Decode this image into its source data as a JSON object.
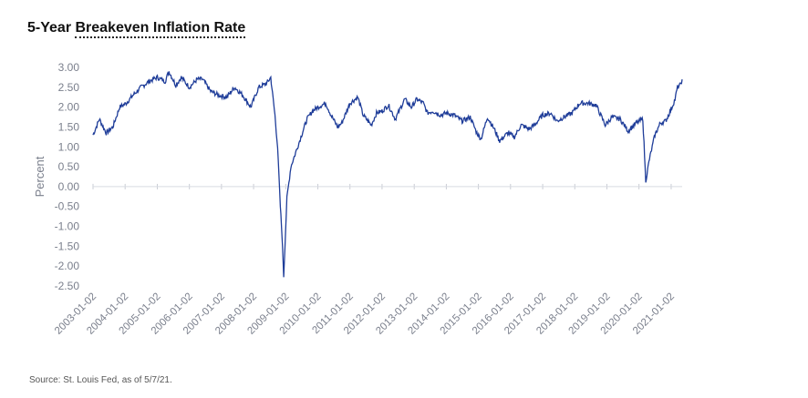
{
  "title": {
    "prefix": "5-Year ",
    "underlined": "Breakeven Inflation Rate"
  },
  "source": "Source: St. Louis Fed, as of 5/7/21.",
  "chart_data": {
    "type": "line",
    "title": "5-Year Breakeven Inflation Rate",
    "xlabel": "",
    "ylabel": "Percent",
    "ylim": [
      -2.5,
      3.0
    ],
    "xlim": [
      "2003-01-02",
      "2021-05-07"
    ],
    "yticks": [
      "3.00",
      "2.50",
      "2.00",
      "1.50",
      "1.00",
      "0.50",
      "0.00",
      "-0.50",
      "-1.00",
      "-1.50",
      "-2.00",
      "-2.50"
    ],
    "xticks": [
      "2003-01-02",
      "2004-01-02",
      "2005-01-02",
      "2006-01-02",
      "2007-01-02",
      "2008-01-02",
      "2009-01-02",
      "2010-01-02",
      "2011-01-02",
      "2012-01-02",
      "2013-01-02",
      "2014-01-02",
      "2015-01-02",
      "2016-01-02",
      "2017-01-02",
      "2018-01-02",
      "2019-01-02",
      "2020-01-02",
      "2021-01-02"
    ],
    "zero_line": true,
    "grid": false,
    "line_color": "#1f3d99",
    "x": [
      "2003-01-02",
      "2003-03-15",
      "2003-06-01",
      "2003-08-15",
      "2003-11-01",
      "2004-01-15",
      "2004-04-01",
      "2004-07-01",
      "2004-10-01",
      "2005-01-02",
      "2005-04-01",
      "2005-05-15",
      "2005-08-01",
      "2005-10-01",
      "2006-01-02",
      "2006-04-01",
      "2006-06-01",
      "2006-09-01",
      "2006-12-01",
      "2007-03-01",
      "2007-06-01",
      "2007-09-01",
      "2007-12-01",
      "2008-03-01",
      "2008-06-01",
      "2008-07-15",
      "2008-09-01",
      "2008-10-01",
      "2008-11-01",
      "2008-11-20",
      "2008-12-10",
      "2009-01-15",
      "2009-03-01",
      "2009-05-01",
      "2009-07-01",
      "2009-09-01",
      "2009-11-01",
      "2010-01-02",
      "2010-04-01",
      "2010-06-01",
      "2010-08-15",
      "2010-10-01",
      "2011-01-02",
      "2011-04-01",
      "2011-06-01",
      "2011-09-01",
      "2011-11-01",
      "2012-01-02",
      "2012-03-15",
      "2012-06-01",
      "2012-09-15",
      "2012-12-01",
      "2013-02-01",
      "2013-04-15",
      "2013-06-01",
      "2013-08-01",
      "2013-11-01",
      "2014-01-02",
      "2014-04-01",
      "2014-07-01",
      "2014-10-01",
      "2014-12-15",
      "2015-02-01",
      "2015-04-15",
      "2015-07-01",
      "2015-09-01",
      "2015-12-01",
      "2016-02-15",
      "2016-05-01",
      "2016-08-01",
      "2016-10-01",
      "2017-01-02",
      "2017-04-01",
      "2017-06-15",
      "2017-09-01",
      "2017-12-01",
      "2018-03-01",
      "2018-06-01",
      "2018-09-01",
      "2018-12-15",
      "2019-03-01",
      "2019-06-01",
      "2019-09-01",
      "2019-12-01",
      "2020-02-15",
      "2020-03-19",
      "2020-05-01",
      "2020-07-01",
      "2020-09-01",
      "2020-11-01",
      "2021-01-02",
      "2021-02-15",
      "2021-03-15",
      "2021-04-15",
      "2021-05-07"
    ],
    "y": [
      1.3,
      1.7,
      1.35,
      1.5,
      2.0,
      2.1,
      2.3,
      2.5,
      2.65,
      2.75,
      2.65,
      2.9,
      2.55,
      2.75,
      2.5,
      2.7,
      2.7,
      2.4,
      2.3,
      2.25,
      2.5,
      2.3,
      2.0,
      2.5,
      2.6,
      2.75,
      1.8,
      1.0,
      -0.5,
      -1.2,
      -2.25,
      -0.3,
      0.5,
      0.9,
      1.3,
      1.7,
      1.9,
      2.0,
      2.1,
      1.8,
      1.5,
      1.6,
      2.1,
      2.25,
      1.8,
      1.55,
      1.85,
      1.9,
      2.05,
      1.7,
      2.2,
      2.0,
      2.2,
      2.1,
      1.85,
      1.9,
      1.8,
      1.85,
      1.8,
      1.65,
      1.75,
      1.35,
      1.2,
      1.75,
      1.45,
      1.15,
      1.35,
      1.25,
      1.55,
      1.45,
      1.55,
      1.8,
      1.85,
      1.65,
      1.75,
      1.85,
      2.1,
      2.1,
      2.05,
      1.55,
      1.75,
      1.7,
      1.4,
      1.6,
      1.7,
      0.15,
      0.7,
      1.3,
      1.6,
      1.65,
      1.95,
      2.2,
      2.5,
      2.55,
      2.7
    ]
  }
}
